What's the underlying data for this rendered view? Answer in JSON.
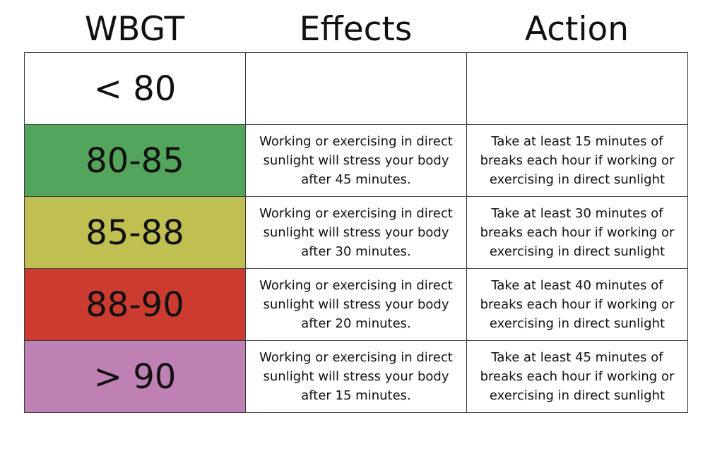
{
  "headers": {
    "wbgt": "WBGT",
    "effects": "Effects",
    "action": "Action"
  },
  "colors": {
    "none": "#ffffff",
    "green": "#52a55a",
    "yellow": "#c0bf52",
    "red": "#cc3b30",
    "purple": "#bf80b4"
  },
  "rows": [
    {
      "wbgt": "< 80",
      "color": "#ffffff",
      "effects": "",
      "action": ""
    },
    {
      "wbgt": "80-85",
      "color": "#52a55a",
      "effects": "Working or exercising in direct sunlight will stress your body after 45 minutes.",
      "action": "Take at least 15 minutes of breaks each hour if working or exercising in direct sunlight"
    },
    {
      "wbgt": "85-88",
      "color": "#c0bf52",
      "effects": "Working or exercising in direct sunlight will stress your body after 30 minutes.",
      "action": "Take at least 30 minutes of breaks each hour if working or exercising in direct sunlight"
    },
    {
      "wbgt": "88-90",
      "color": "#cc3b30",
      "effects": "Working or exercising in direct sunlight will stress your body after 20 minutes.",
      "action": "Take at least 40 minutes of breaks each hour if working or exercising in direct sunlight"
    },
    {
      "wbgt": "> 90",
      "color": "#bf80b4",
      "effects": "Working or exercising in direct sunlight will stress your body after 15 minutes.",
      "action": "Take at least 45 minutes of breaks each hour if working or exercising in direct sunlight"
    }
  ]
}
